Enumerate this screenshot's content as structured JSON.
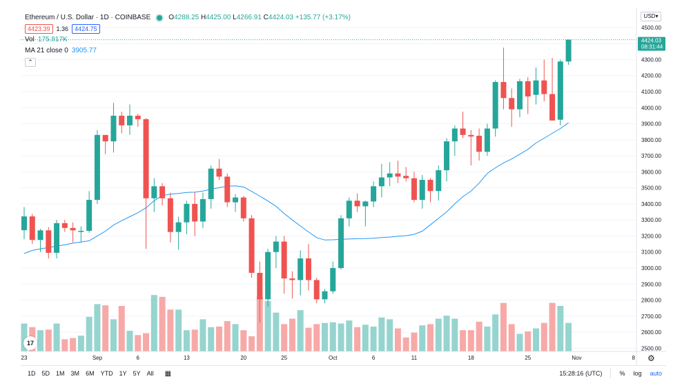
{
  "legend": {
    "title": "Ethereum / U.S. Dollar · 1D · COINBASE",
    "o_label": "O",
    "o": "4288.25",
    "h_label": "H",
    "h": "4425.00",
    "l_label": "L",
    "l": "4266.91",
    "c_label": "C",
    "c": "4424.03",
    "change": "+135.77 (+3.17%)",
    "sell": "4423.39",
    "spread": "1.36",
    "buy": "4424.75",
    "vol_label": "Vol",
    "vol_value": "175.817K",
    "ma_label": "MA 21 close 0",
    "ma_value": "3905.77",
    "collapse_icon": "⌃"
  },
  "currency": "USD",
  "price_axis": {
    "ticks": [
      "4500.00",
      "4400.00",
      "4300.00",
      "4200.00",
      "4100.00",
      "4000.00",
      "3900.00",
      "3800.00",
      "3700.00",
      "3600.00",
      "3500.00",
      "3400.00",
      "3300.00",
      "3200.00",
      "3100.00",
      "3000.00",
      "2900.00",
      "2800.00",
      "2700.00",
      "2600.00",
      "2500.00"
    ],
    "last_price": "4424.03",
    "countdown": "08:31:44"
  },
  "time_axis": {
    "ticks": [
      "23",
      "Sep",
      "6",
      "13",
      "20",
      "25",
      "Oct",
      "6",
      "11",
      "18",
      "25",
      "Nov",
      "8"
    ]
  },
  "bottom_bar": {
    "ranges": [
      "1D",
      "5D",
      "1M",
      "3M",
      "6M",
      "YTD",
      "1Y",
      "5Y",
      "All"
    ],
    "clock": "15:28:16 (UTC)",
    "percent": "%",
    "log": "log",
    "auto": "auto"
  },
  "logo_text": "17",
  "colors": {
    "up": "#26a69a",
    "down": "#ef5350",
    "ma": "#2196f3",
    "up_vol": "#96d4cf",
    "down_vol": "#f7a9a8"
  },
  "chart_data": {
    "type": "candlestick",
    "title": "Ethereum / U.S. Dollar · 1D · COINBASE",
    "y_range": [
      2480,
      4620
    ],
    "candles": [
      {
        "o": 3236,
        "h": 3380,
        "l": 3180,
        "c": 3322
      },
      {
        "o": 3322,
        "h": 3338,
        "l": 3150,
        "c": 3175
      },
      {
        "o": 3175,
        "h": 3245,
        "l": 3100,
        "c": 3235
      },
      {
        "o": 3235,
        "h": 3255,
        "l": 3060,
        "c": 3095
      },
      {
        "o": 3095,
        "h": 3300,
        "l": 3060,
        "c": 3280
      },
      {
        "o": 3280,
        "h": 3300,
        "l": 3225,
        "c": 3250
      },
      {
        "o": 3250,
        "h": 3285,
        "l": 3160,
        "c": 3235
      },
      {
        "o": 3225,
        "h": 3260,
        "l": 3160,
        "c": 3232
      },
      {
        "o": 3232,
        "h": 3480,
        "l": 3220,
        "c": 3425
      },
      {
        "o": 3425,
        "h": 3860,
        "l": 3400,
        "c": 3830
      },
      {
        "o": 3830,
        "h": 3830,
        "l": 3710,
        "c": 3790
      },
      {
        "o": 3790,
        "h": 4030,
        "l": 3720,
        "c": 3950
      },
      {
        "o": 3950,
        "h": 3975,
        "l": 3840,
        "c": 3890
      },
      {
        "o": 3890,
        "h": 4020,
        "l": 3830,
        "c": 3950
      },
      {
        "o": 3950,
        "h": 3962,
        "l": 3880,
        "c": 3928
      },
      {
        "o": 3928,
        "h": 3935,
        "l": 3120,
        "c": 3435
      },
      {
        "o": 3435,
        "h": 3560,
        "l": 3350,
        "c": 3510
      },
      {
        "o": 3510,
        "h": 3530,
        "l": 3390,
        "c": 3435
      },
      {
        "o": 3435,
        "h": 3470,
        "l": 3160,
        "c": 3225
      },
      {
        "o": 3225,
        "h": 3320,
        "l": 3115,
        "c": 3285
      },
      {
        "o": 3285,
        "h": 3420,
        "l": 3210,
        "c": 3400
      },
      {
        "o": 3400,
        "h": 3475,
        "l": 3200,
        "c": 3290
      },
      {
        "o": 3290,
        "h": 3470,
        "l": 3250,
        "c": 3430
      },
      {
        "o": 3430,
        "h": 3640,
        "l": 3370,
        "c": 3620
      },
      {
        "o": 3620,
        "h": 3680,
        "l": 3550,
        "c": 3570
      },
      {
        "o": 3570,
        "h": 3590,
        "l": 3380,
        "c": 3410
      },
      {
        "o": 3410,
        "h": 3460,
        "l": 3350,
        "c": 3440
      },
      {
        "o": 3440,
        "h": 3450,
        "l": 3290,
        "c": 3310
      },
      {
        "o": 3310,
        "h": 3330,
        "l": 2940,
        "c": 2970
      },
      {
        "o": 2970,
        "h": 3040,
        "l": 2660,
        "c": 2805
      },
      {
        "o": 2805,
        "h": 3120,
        "l": 2760,
        "c": 3100
      },
      {
        "o": 3100,
        "h": 3200,
        "l": 3000,
        "c": 3165
      },
      {
        "o": 3165,
        "h": 3200,
        "l": 2840,
        "c": 2935
      },
      {
        "o": 2935,
        "h": 2980,
        "l": 2810,
        "c": 2925
      },
      {
        "o": 2925,
        "h": 3110,
        "l": 2830,
        "c": 3060
      },
      {
        "o": 3060,
        "h": 3150,
        "l": 2860,
        "c": 2925
      },
      {
        "o": 2925,
        "h": 2940,
        "l": 2780,
        "c": 2805
      },
      {
        "o": 2805,
        "h": 2870,
        "l": 2780,
        "c": 2855
      },
      {
        "o": 2855,
        "h": 3040,
        "l": 2840,
        "c": 3000
      },
      {
        "o": 3000,
        "h": 3330,
        "l": 2990,
        "c": 3310
      },
      {
        "o": 3310,
        "h": 3440,
        "l": 3260,
        "c": 3420
      },
      {
        "o": 3420,
        "h": 3465,
        "l": 3350,
        "c": 3385
      },
      {
        "o": 3385,
        "h": 3420,
        "l": 3260,
        "c": 3415
      },
      {
        "o": 3415,
        "h": 3540,
        "l": 3380,
        "c": 3510
      },
      {
        "o": 3510,
        "h": 3650,
        "l": 3440,
        "c": 3565
      },
      {
        "o": 3565,
        "h": 3660,
        "l": 3510,
        "c": 3590
      },
      {
        "o": 3590,
        "h": 3670,
        "l": 3530,
        "c": 3570
      },
      {
        "o": 3575,
        "h": 3630,
        "l": 3540,
        "c": 3560
      },
      {
        "o": 3560,
        "h": 3600,
        "l": 3410,
        "c": 3425
      },
      {
        "o": 3425,
        "h": 3580,
        "l": 3370,
        "c": 3550
      },
      {
        "o": 3550,
        "h": 3560,
        "l": 3410,
        "c": 3480
      },
      {
        "o": 3480,
        "h": 3640,
        "l": 3420,
        "c": 3610
      },
      {
        "o": 3610,
        "h": 3810,
        "l": 3540,
        "c": 3790
      },
      {
        "o": 3790,
        "h": 3890,
        "l": 3700,
        "c": 3870
      },
      {
        "o": 3870,
        "h": 3975,
        "l": 3810,
        "c": 3830
      },
      {
        "o": 3830,
        "h": 3860,
        "l": 3640,
        "c": 3820
      },
      {
        "o": 3825,
        "h": 3870,
        "l": 3670,
        "c": 3725
      },
      {
        "o": 3725,
        "h": 3900,
        "l": 3700,
        "c": 3870
      },
      {
        "o": 3870,
        "h": 4170,
        "l": 3820,
        "c": 4160
      },
      {
        "o": 4160,
        "h": 4375,
        "l": 3990,
        "c": 4060
      },
      {
        "o": 4060,
        "h": 4120,
        "l": 3880,
        "c": 3990
      },
      {
        "o": 3990,
        "h": 4180,
        "l": 3940,
        "c": 4165
      },
      {
        "o": 4165,
        "h": 4190,
        "l": 3960,
        "c": 4070
      },
      {
        "o": 4080,
        "h": 4250,
        "l": 4020,
        "c": 4170
      },
      {
        "o": 4170,
        "h": 4300,
        "l": 4040,
        "c": 4085
      },
      {
        "o": 4085,
        "h": 4310,
        "l": 3920,
        "c": 3920
      },
      {
        "o": 3925,
        "h": 4300,
        "l": 3890,
        "c": 4288
      },
      {
        "o": 4288,
        "h": 4425,
        "l": 4267,
        "c": 4424
      }
    ],
    "ma21": [
      3090,
      3110,
      3120,
      3128,
      3136,
      3145,
      3155,
      3162,
      3170,
      3200,
      3230,
      3268,
      3295,
      3320,
      3345,
      3375,
      3420,
      3452,
      3460,
      3465,
      3472,
      3473,
      3480,
      3492,
      3501,
      3510,
      3512,
      3506,
      3478,
      3449,
      3418,
      3385,
      3340,
      3300,
      3262,
      3225,
      3190,
      3175,
      3176,
      3179,
      3181,
      3183,
      3184,
      3186,
      3190,
      3193,
      3198,
      3202,
      3210,
      3230,
      3270,
      3310,
      3350,
      3400,
      3445,
      3480,
      3530,
      3590,
      3625,
      3655,
      3680,
      3710,
      3740,
      3780,
      3810,
      3840,
      3870,
      3906
    ],
    "volume_norm": [
      0.46,
      0.4,
      0.35,
      0.36,
      0.46,
      0.2,
      0.22,
      0.26,
      0.57,
      0.78,
      0.76,
      0.53,
      0.75,
      0.34,
      0.27,
      0.3,
      0.93,
      0.9,
      0.69,
      0.69,
      0.35,
      0.36,
      0.53,
      0.4,
      0.41,
      0.5,
      0.45,
      0.35,
      0.25,
      0.9,
      0.83,
      0.64,
      0.45,
      0.54,
      0.68,
      0.39,
      0.45,
      0.47,
      0.48,
      0.46,
      0.51,
      0.4,
      0.44,
      0.41,
      0.56,
      0.53,
      0.38,
      0.23,
      0.31,
      0.43,
      0.45,
      0.54,
      0.59,
      0.54,
      0.35,
      0.35,
      0.49,
      0.41,
      0.61,
      0.8,
      0.45,
      0.29,
      0.33,
      0.38,
      0.47,
      0.8,
      0.75,
      0.47
    ]
  }
}
